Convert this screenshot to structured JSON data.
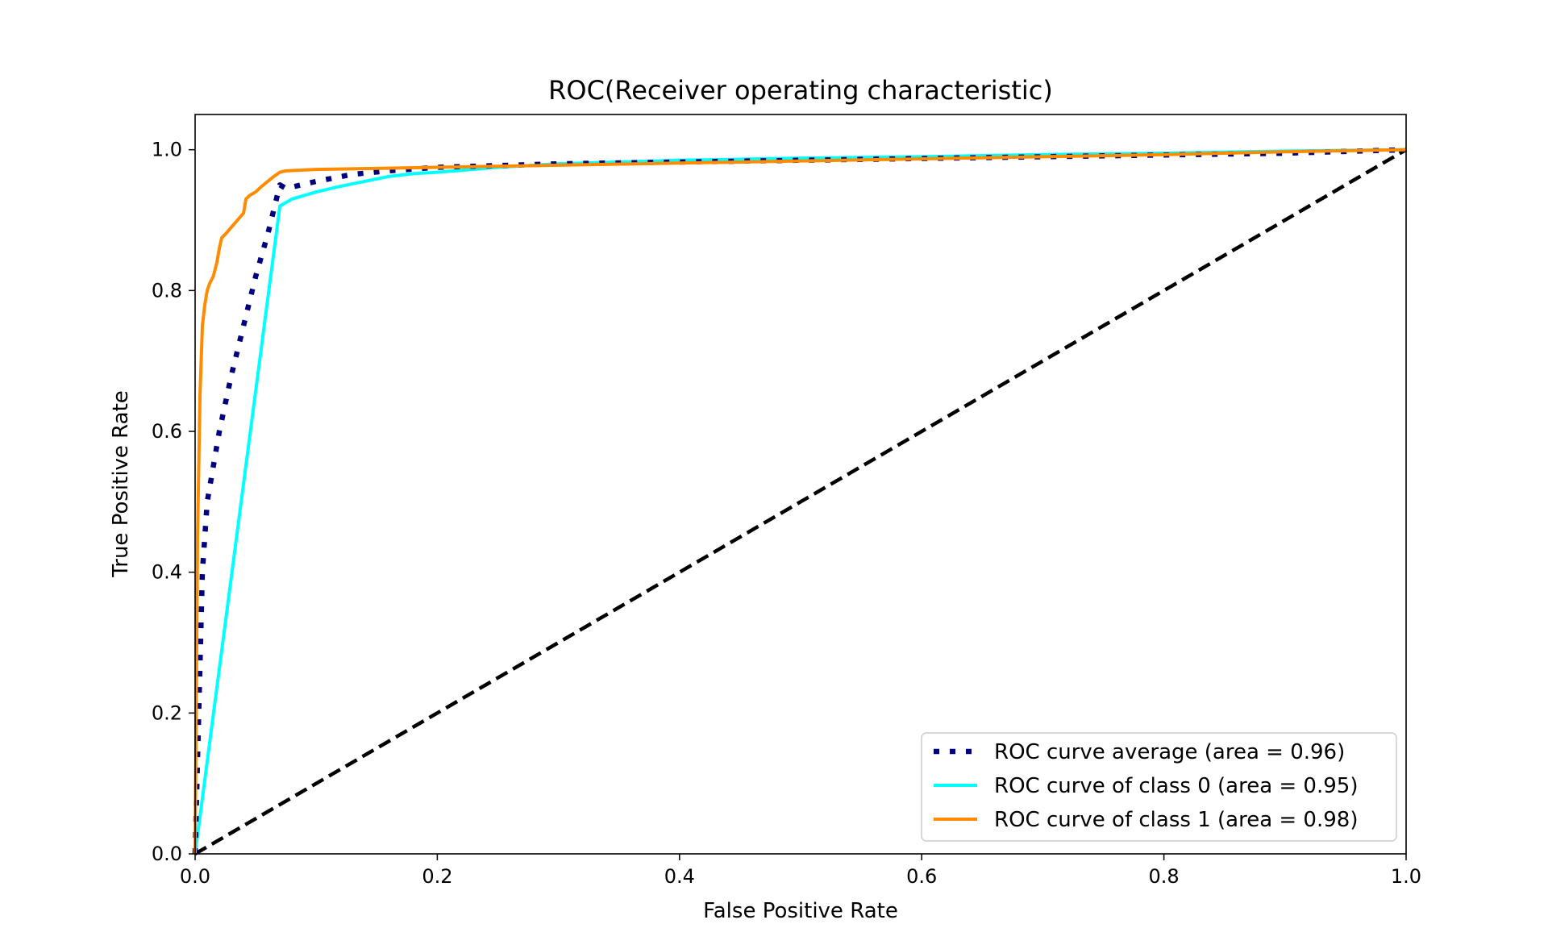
{
  "chart_data": {
    "type": "line",
    "title": "ROC(Receiver operating characteristic)",
    "xlabel": "False Positive Rate",
    "ylabel": "True Positive Rate",
    "xlim": [
      0.0,
      1.0
    ],
    "ylim": [
      0.0,
      1.05
    ],
    "xticks": [
      "0.0",
      "0.2",
      "0.4",
      "0.6",
      "0.8",
      "1.0"
    ],
    "yticks": [
      "0.0",
      "0.2",
      "0.4",
      "0.6",
      "0.8",
      "1.0"
    ],
    "grid": false,
    "legend_position": "lower-right",
    "series": [
      {
        "name": "ROC curve average (area = 0.96)",
        "color": "#000080",
        "style": "dotted",
        "x": [
          0.0,
          0.003,
          0.006,
          0.01,
          0.015,
          0.02,
          0.03,
          0.04,
          0.05,
          0.06,
          0.07,
          0.075,
          0.1,
          0.13,
          0.16,
          0.2,
          0.3,
          0.5,
          0.7,
          0.9,
          1.0
        ],
        "y": [
          0.0,
          0.2,
          0.4,
          0.5,
          0.55,
          0.6,
          0.68,
          0.75,
          0.82,
          0.88,
          0.95,
          0.945,
          0.955,
          0.965,
          0.97,
          0.975,
          0.98,
          0.985,
          0.99,
          0.995,
          1.0
        ]
      },
      {
        "name": "ROC curve of class 0 (area = 0.95)",
        "color": "#00ffff",
        "style": "solid",
        "x": [
          0.0,
          0.07,
          0.08,
          0.09,
          0.1,
          0.12,
          0.14,
          0.16,
          0.18,
          0.2,
          0.25,
          0.3,
          0.4,
          0.5,
          0.6,
          0.7,
          0.8,
          0.9,
          1.0
        ],
        "y": [
          0.0,
          0.92,
          0.93,
          0.935,
          0.94,
          0.948,
          0.955,
          0.962,
          0.966,
          0.968,
          0.975,
          0.98,
          0.985,
          0.988,
          0.99,
          0.993,
          0.995,
          0.998,
          1.0
        ]
      },
      {
        "name": "ROC curve of class 1 (area = 0.98)",
        "color": "#ff8c00",
        "style": "solid",
        "x": [
          0.0,
          0.002,
          0.004,
          0.006,
          0.008,
          0.01,
          0.012,
          0.015,
          0.018,
          0.02,
          0.022,
          0.025,
          0.03,
          0.035,
          0.04,
          0.042,
          0.045,
          0.05,
          0.055,
          0.06,
          0.065,
          0.07,
          0.075,
          0.1,
          0.2,
          0.3,
          0.4,
          0.5,
          0.6,
          0.7,
          0.8,
          0.9,
          1.0
        ],
        "y": [
          0.0,
          0.45,
          0.65,
          0.75,
          0.78,
          0.8,
          0.81,
          0.82,
          0.84,
          0.86,
          0.875,
          0.88,
          0.89,
          0.9,
          0.91,
          0.93,
          0.935,
          0.94,
          0.948,
          0.955,
          0.962,
          0.968,
          0.97,
          0.972,
          0.975,
          0.978,
          0.981,
          0.984,
          0.987,
          0.99,
          0.993,
          0.997,
          1.0
        ]
      },
      {
        "name": "",
        "color": "#000000",
        "style": "dashed",
        "x": [
          0.0,
          1.0
        ],
        "y": [
          0.0,
          1.0
        ]
      }
    ]
  }
}
